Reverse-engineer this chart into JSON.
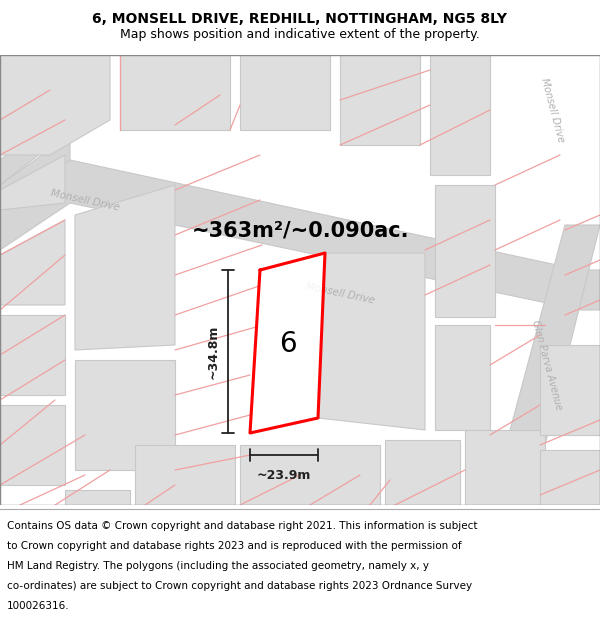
{
  "title_line1": "6, MONSELL DRIVE, REDHILL, NOTTINGHAM, NG5 8LY",
  "title_line2": "Map shows position and indicative extent of the property.",
  "footer_lines": [
    "Contains OS data © Crown copyright and database right 2021. This information is subject",
    "to Crown copyright and database rights 2023 and is reproduced with the permission of",
    "HM Land Registry. The polygons (including the associated geometry, namely x, y",
    "co-ordinates) are subject to Crown copyright and database rights 2023 Ordnance Survey",
    "100026316."
  ],
  "area_label": "~363m²/~0.090ac.",
  "width_label": "~23.9m",
  "height_label": "~34.8m",
  "plot_number": "6",
  "road_gray": "#d5d5d5",
  "road_ec": "#c8c8c8",
  "bld_gray": "#dedede",
  "bld_ec": "#c8c8c8",
  "pink": "#f0a0a0",
  "red": "#ff0000",
  "dark": "#222222",
  "road_label_color": "#b0b0b0",
  "title_fontsize": 10,
  "subtitle_fontsize": 9,
  "footer_fontsize": 7.5,
  "area_fontsize": 15,
  "dim_fontsize": 9,
  "plot_label_fontsize": 20
}
